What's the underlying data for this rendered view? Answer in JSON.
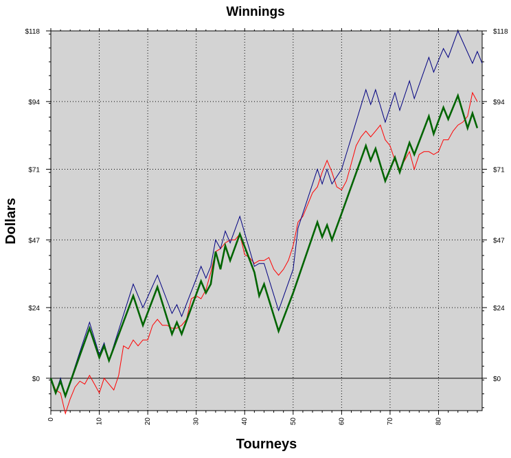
{
  "chart_data": {
    "type": "line",
    "title": "Winnings",
    "xlabel": "Tourneys",
    "ylabel": "Dollars",
    "xlim": [
      0,
      89
    ],
    "ylim": [
      -11,
      118
    ],
    "x_ticks": [
      0,
      10,
      20,
      30,
      40,
      50,
      60,
      70,
      80
    ],
    "x_tick_labels": [
      "0",
      "10",
      "20",
      "30",
      "40",
      "50",
      "60",
      "70",
      "80"
    ],
    "y_ticks": [
      0,
      24,
      47,
      71,
      94,
      118
    ],
    "y_tick_labels": [
      "$0",
      "$24",
      "$47",
      "$71",
      "$94",
      "$118"
    ],
    "grid": true,
    "background": "#d3d3d3",
    "series": [
      {
        "color": "#ff0000",
        "style": "thin",
        "points": [
          [
            0,
            0
          ],
          [
            1,
            -4
          ],
          [
            2,
            -5
          ],
          [
            3,
            -12
          ],
          [
            4,
            -7
          ],
          [
            5,
            -3
          ],
          [
            6,
            -1
          ],
          [
            7,
            -2
          ],
          [
            8,
            1
          ],
          [
            9,
            -2
          ],
          [
            10,
            -5
          ],
          [
            11,
            0
          ],
          [
            12,
            -2
          ],
          [
            13,
            -4
          ],
          [
            14,
            1
          ],
          [
            15,
            11
          ],
          [
            16,
            10
          ],
          [
            17,
            13
          ],
          [
            18,
            11
          ],
          [
            19,
            13
          ],
          [
            20,
            13
          ],
          [
            21,
            18
          ],
          [
            22,
            20
          ],
          [
            23,
            18
          ],
          [
            24,
            18
          ],
          [
            25,
            17
          ],
          [
            26,
            17
          ],
          [
            27,
            18
          ],
          [
            28,
            20
          ],
          [
            29,
            27
          ],
          [
            30,
            28
          ],
          [
            31,
            27
          ],
          [
            32,
            30
          ],
          [
            33,
            36
          ],
          [
            34,
            43
          ],
          [
            35,
            44
          ],
          [
            36,
            46
          ],
          [
            37,
            47
          ],
          [
            38,
            47
          ],
          [
            39,
            49
          ],
          [
            40,
            42
          ],
          [
            41,
            41
          ],
          [
            42,
            39
          ],
          [
            43,
            40
          ],
          [
            44,
            40
          ],
          [
            45,
            41
          ],
          [
            46,
            37
          ],
          [
            47,
            35
          ],
          [
            48,
            37
          ],
          [
            49,
            40
          ],
          [
            50,
            45
          ],
          [
            51,
            53
          ],
          [
            52,
            55
          ],
          [
            53,
            59
          ],
          [
            54,
            63
          ],
          [
            55,
            65
          ],
          [
            56,
            70
          ],
          [
            57,
            74
          ],
          [
            58,
            70
          ],
          [
            59,
            65
          ],
          [
            60,
            64
          ],
          [
            61,
            67
          ],
          [
            62,
            73
          ],
          [
            63,
            79
          ],
          [
            64,
            82
          ],
          [
            65,
            84
          ],
          [
            66,
            82
          ],
          [
            67,
            84
          ],
          [
            68,
            86
          ],
          [
            69,
            81
          ],
          [
            70,
            79
          ],
          [
            71,
            74
          ],
          [
            72,
            71
          ],
          [
            73,
            74
          ],
          [
            74,
            77
          ],
          [
            75,
            71
          ],
          [
            76,
            76
          ],
          [
            77,
            77
          ],
          [
            78,
            77
          ],
          [
            79,
            76
          ],
          [
            80,
            77
          ],
          [
            81,
            81
          ],
          [
            82,
            81
          ],
          [
            83,
            84
          ],
          [
            84,
            86
          ],
          [
            85,
            87
          ],
          [
            86,
            89
          ],
          [
            87,
            97
          ],
          [
            88,
            94
          ]
        ]
      },
      {
        "color": "#000080",
        "style": "thin",
        "points": [
          [
            0,
            0
          ],
          [
            1,
            -5
          ],
          [
            2,
            0
          ],
          [
            3,
            -6
          ],
          [
            8,
            19
          ],
          [
            10,
            8
          ],
          [
            11,
            12
          ],
          [
            12,
            6
          ],
          [
            17,
            32
          ],
          [
            19,
            24
          ],
          [
            22,
            35
          ],
          [
            25,
            22
          ],
          [
            26,
            25
          ],
          [
            27,
            21
          ],
          [
            31,
            38
          ],
          [
            32,
            34
          ],
          [
            33,
            38
          ],
          [
            34,
            47
          ],
          [
            35,
            44
          ],
          [
            36,
            50
          ],
          [
            37,
            46
          ],
          [
            39,
            55
          ],
          [
            42,
            38
          ],
          [
            43,
            39
          ],
          [
            44,
            39
          ],
          [
            47,
            23
          ],
          [
            50,
            37
          ],
          [
            51,
            51
          ],
          [
            52,
            56
          ],
          [
            55,
            71
          ],
          [
            56,
            66
          ],
          [
            57,
            71
          ],
          [
            58,
            66
          ],
          [
            60,
            71
          ],
          [
            65,
            98
          ],
          [
            66,
            93
          ],
          [
            67,
            98
          ],
          [
            69,
            87
          ],
          [
            71,
            97
          ],
          [
            72,
            91
          ],
          [
            74,
            101
          ],
          [
            75,
            95
          ],
          [
            78,
            109
          ],
          [
            79,
            104
          ],
          [
            81,
            112
          ],
          [
            82,
            109
          ],
          [
            84,
            118
          ],
          [
            87,
            107
          ],
          [
            88,
            111
          ],
          [
            89,
            107
          ]
        ]
      },
      {
        "color": "#006400",
        "style": "thick",
        "points": [
          [
            0,
            0
          ],
          [
            1,
            -5
          ],
          [
            2,
            -1
          ],
          [
            3,
            -6
          ],
          [
            8,
            17
          ],
          [
            10,
            7
          ],
          [
            11,
            11
          ],
          [
            12,
            6
          ],
          [
            17,
            28
          ],
          [
            19,
            18
          ],
          [
            22,
            31
          ],
          [
            25,
            15
          ],
          [
            26,
            19
          ],
          [
            27,
            15
          ],
          [
            31,
            33
          ],
          [
            32,
            29
          ],
          [
            33,
            32
          ],
          [
            34,
            43
          ],
          [
            35,
            37
          ],
          [
            36,
            45
          ],
          [
            37,
            40
          ],
          [
            39,
            49
          ],
          [
            42,
            36
          ],
          [
            43,
            28
          ],
          [
            44,
            32
          ],
          [
            47,
            16
          ],
          [
            50,
            29
          ],
          [
            55,
            53
          ],
          [
            56,
            48
          ],
          [
            57,
            52
          ],
          [
            58,
            47
          ],
          [
            60,
            56
          ],
          [
            65,
            79
          ],
          [
            66,
            74
          ],
          [
            67,
            78
          ],
          [
            69,
            67
          ],
          [
            71,
            75
          ],
          [
            72,
            70
          ],
          [
            74,
            80
          ],
          [
            75,
            76
          ],
          [
            78,
            89
          ],
          [
            79,
            83
          ],
          [
            81,
            92
          ],
          [
            82,
            88
          ],
          [
            84,
            96
          ],
          [
            86,
            85
          ],
          [
            87,
            90
          ],
          [
            88,
            85
          ]
        ]
      }
    ]
  }
}
